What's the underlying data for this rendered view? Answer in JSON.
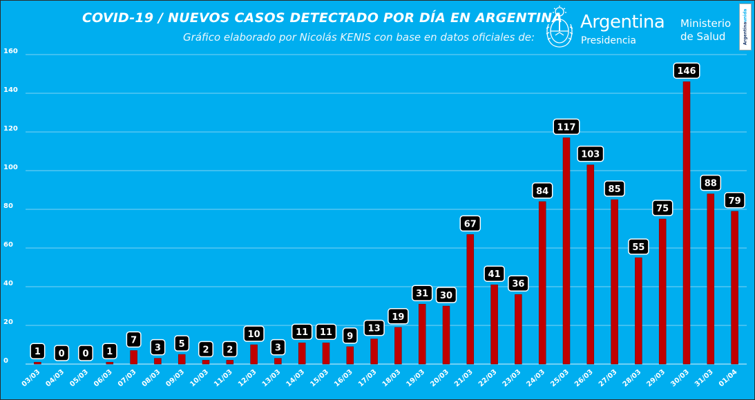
{
  "header": {
    "title": "COVID-19  /  NUEVOS CASOS DETECTADO POR DÍA EN ARGENTINA",
    "subtitle": "Gráfico elaborado por Nicolás KENIS con base en datos oficiales de:"
  },
  "logos": {
    "argentina_name": "Argentina",
    "argentina_sub": "Presidencia",
    "ministerio_line1": "Ministerio",
    "ministerio_line2": "de Salud",
    "badge_text": "Argentina unida"
  },
  "colors": {
    "background": "#00aeef",
    "bar": "#c00000",
    "label_box": "#000000",
    "text": "#ffffff"
  },
  "chart_data": {
    "type": "bar",
    "title": "COVID-19  /  NUEVOS CASOS DETECTADO POR DÍA EN ARGENTINA",
    "categories": [
      "03/03",
      "04/03",
      "05/03",
      "06/03",
      "07/03",
      "08/03",
      "09/03",
      "10/03",
      "11/03",
      "12/03",
      "13/03",
      "14/03",
      "15/03",
      "16/03",
      "17/03",
      "18/03",
      "19/03",
      "20/03",
      "21/03",
      "22/03",
      "23/03",
      "24/03",
      "25/03",
      "26/03",
      "27/03",
      "28/03",
      "29/03",
      "30/03",
      "31/03",
      "01/04"
    ],
    "values": [
      1,
      0,
      0,
      1,
      7,
      3,
      5,
      2,
      2,
      10,
      3,
      11,
      11,
      9,
      13,
      19,
      31,
      30,
      67,
      41,
      36,
      84,
      117,
      103,
      85,
      55,
      75,
      146,
      88,
      79
    ],
    "ylim": [
      0,
      160
    ],
    "yticks": [
      0,
      20,
      40,
      60,
      80,
      100,
      120,
      140,
      160
    ],
    "grid": true,
    "data_labels": true,
    "legend": "none"
  }
}
